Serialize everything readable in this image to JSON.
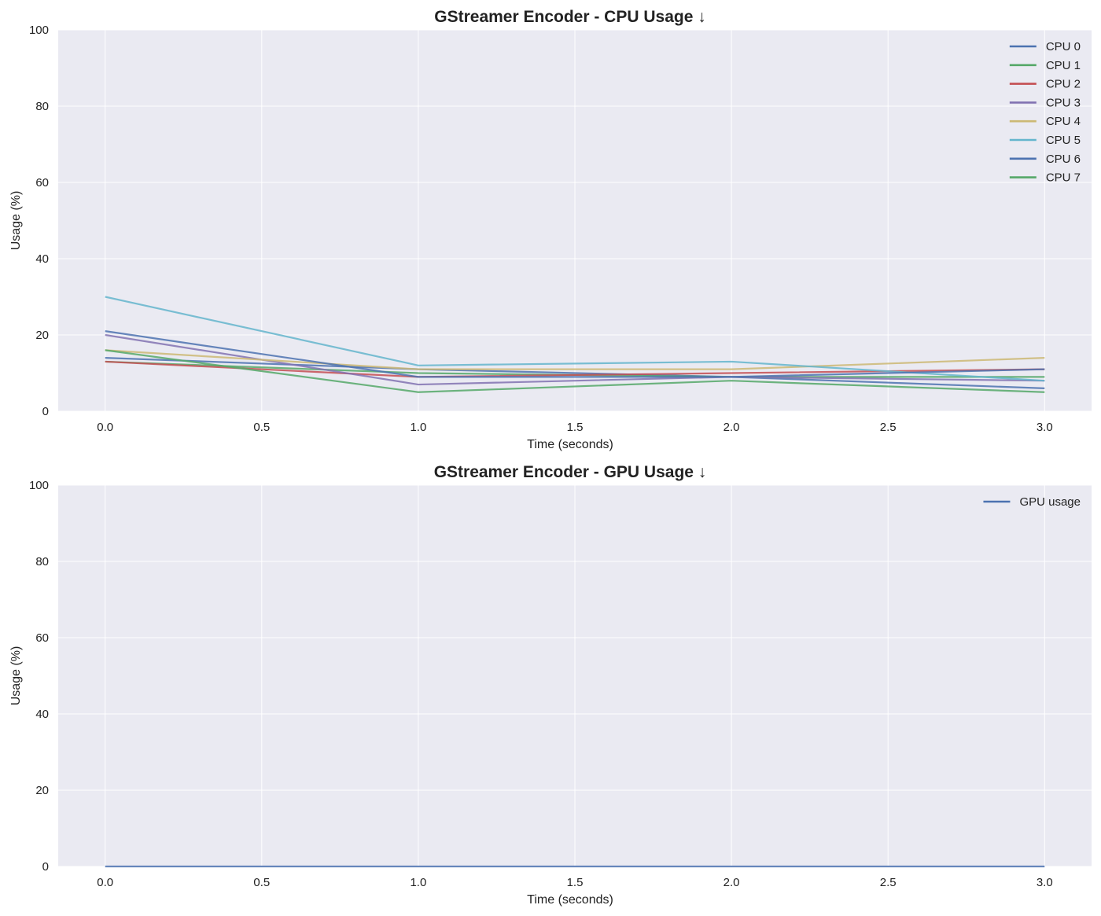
{
  "chart_data": [
    {
      "type": "line",
      "title": "GStreamer Encoder - CPU Usage ↓",
      "xlabel": "Time (seconds)",
      "ylabel": "Usage (%)",
      "xlim": [
        -0.15,
        3.15
      ],
      "ylim": [
        0,
        100
      ],
      "xticks": [
        "0.0",
        "0.5",
        "1.0",
        "1.5",
        "2.0",
        "2.5",
        "3.0"
      ],
      "yticks": [
        "0",
        "20",
        "40",
        "60",
        "80",
        "100"
      ],
      "grid": true,
      "legend": "top-right",
      "x": [
        0,
        1,
        2,
        3
      ],
      "series": [
        {
          "name": "CPU 0",
          "color": "#4c72b0",
          "values": [
            14,
            11,
            9,
            6
          ]
        },
        {
          "name": "CPU 1",
          "color": "#55a868",
          "values": [
            13,
            10,
            9,
            9
          ]
        },
        {
          "name": "CPU 2",
          "color": "#c44e52",
          "values": [
            13,
            9,
            10,
            11
          ]
        },
        {
          "name": "CPU 3",
          "color": "#8172b2",
          "values": [
            20,
            7,
            9,
            8
          ]
        },
        {
          "name": "CPU 4",
          "color": "#ccb974",
          "values": [
            16,
            11,
            11,
            14
          ]
        },
        {
          "name": "CPU 5",
          "color": "#64b5cd",
          "values": [
            30,
            12,
            13,
            8
          ]
        },
        {
          "name": "CPU 6",
          "color": "#4c72b0",
          "values": [
            21,
            9,
            9,
            11
          ]
        },
        {
          "name": "CPU 7",
          "color": "#55a868",
          "values": [
            16,
            5,
            8,
            5
          ]
        }
      ]
    },
    {
      "type": "line",
      "title": "GStreamer Encoder - GPU Usage ↓",
      "xlabel": "Time (seconds)",
      "ylabel": "Usage (%)",
      "xlim": [
        -0.15,
        3.15
      ],
      "ylim": [
        0,
        100
      ],
      "xticks": [
        "0.0",
        "0.5",
        "1.0",
        "1.5",
        "2.0",
        "2.5",
        "3.0"
      ],
      "yticks": [
        "0",
        "20",
        "40",
        "60",
        "80",
        "100"
      ],
      "grid": true,
      "legend": "top-right",
      "x": [
        0,
        1,
        2,
        3
      ],
      "series": [
        {
          "name": "GPU usage",
          "color": "#4c72b0",
          "values": [
            0,
            0,
            0,
            0
          ]
        }
      ]
    }
  ]
}
